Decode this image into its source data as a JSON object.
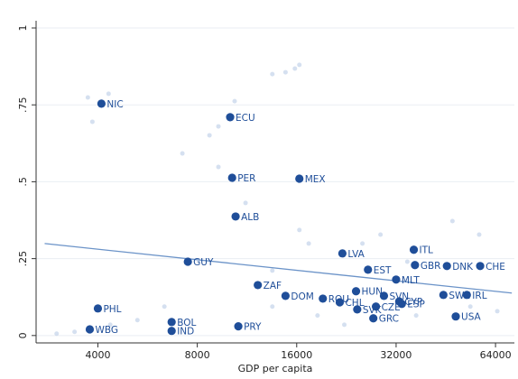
{
  "chart_data": {
    "type": "scatter",
    "xlabel": "GDP per capita",
    "log_x": true,
    "grid": true,
    "xlim": [
      2600,
      73000
    ],
    "ylim": [
      -0.024,
      1
    ],
    "xticks": [
      4000,
      8000,
      16000,
      32000,
      64000
    ],
    "yticks": [
      0,
      {
        "value": 0.25,
        "label": ".25"
      },
      {
        "value": 0.5,
        "label": ".5"
      },
      {
        "value": 0.75,
        "label": ".75"
      },
      1
    ],
    "points": {
      "color": "#1f4e99",
      "labels": [
        "NIC",
        "ECU",
        "PER",
        "MEX",
        "ALB",
        "GUY",
        "LVA",
        "ITL",
        "EST",
        "GBR",
        "DNK",
        "CHE",
        "MLT",
        "ZAF",
        "HUN",
        "SVN",
        "SWE",
        "IRL",
        "DOM",
        "ROU",
        "CHL",
        "CYP",
        "ESP",
        "CZE",
        "SVK",
        "GRC",
        "USA",
        "PHL",
        "BOL",
        "IND",
        "WBG",
        "PRY"
      ],
      "x": [
        4100,
        10060,
        10200,
        16300,
        10450,
        7490,
        22000,
        36200,
        26300,
        36500,
        45600,
        57500,
        32000,
        12200,
        24200,
        29400,
        44500,
        52400,
        14800,
        19200,
        21600,
        32700,
        33300,
        27800,
        24400,
        27300,
        48500,
        4000,
        6690,
        6690,
        3780,
        10650
      ],
      "y": [
        0.754,
        0.71,
        0.513,
        0.51,
        0.387,
        0.24,
        0.267,
        0.279,
        0.214,
        0.229,
        0.226,
        0.226,
        0.182,
        0.164,
        0.144,
        0.129,
        0.132,
        0.132,
        0.129,
        0.12,
        0.108,
        0.111,
        0.103,
        0.094,
        0.085,
        0.056,
        0.062,
        0.088,
        0.044,
        0.015,
        0.02,
        0.03
      ]
    },
    "background": {
      "color": "#b9cbe6",
      "x": [
        3730,
        4310,
        3850,
        8710,
        9270,
        10380,
        14800,
        15800,
        16300,
        13500,
        7210,
        9270,
        11200,
        16300,
        17400,
        28700,
        47400,
        57100,
        3000,
        3400,
        4360,
        5270,
        13500,
        18500,
        22300,
        36800,
        53700,
        64800,
        13500,
        25300,
        34600,
        6360
      ],
      "y": [
        0.774,
        0.786,
        0.695,
        0.651,
        0.68,
        0.762,
        0.856,
        0.868,
        0.88,
        0.85,
        0.592,
        0.548,
        0.431,
        0.343,
        0.299,
        0.328,
        0.372,
        0.328,
        0.006,
        0.012,
        0.035,
        0.05,
        0.094,
        0.065,
        0.035,
        0.065,
        0.094,
        0.079,
        0.211,
        0.299,
        0.24,
        0.094
      ]
    },
    "fit": {
      "color": "#6b93c8",
      "x": [
        2760,
        71700
      ],
      "y": [
        0.299,
        0.138
      ]
    }
  }
}
